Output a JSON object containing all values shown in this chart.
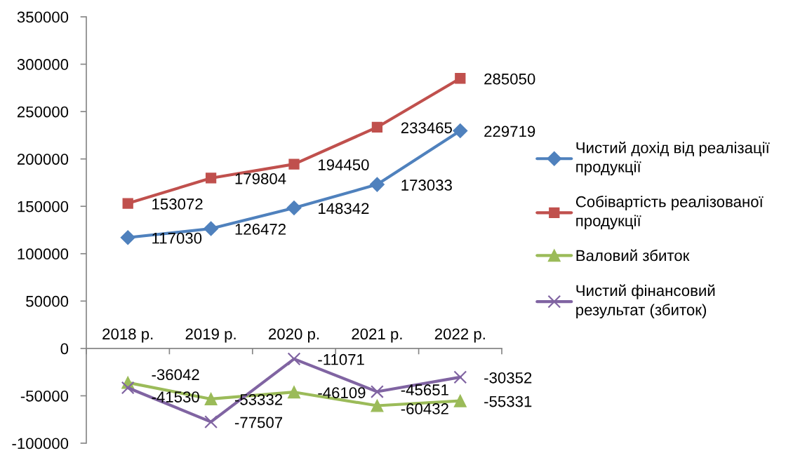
{
  "chart_data": {
    "type": "line",
    "categories": [
      "2018 р.",
      "2019 р.",
      "2020 р.",
      "2021 р.",
      "2022 р."
    ],
    "series": [
      {
        "name": "Чистий дохід від реалізації продукції",
        "color": "#4f81bd",
        "marker": "diamond",
        "values": [
          117030,
          126472,
          148342,
          173033,
          229719
        ]
      },
      {
        "name": "Собівартість реалізованої продукції",
        "color": "#c0504d",
        "marker": "square",
        "values": [
          153072,
          179804,
          194450,
          233465,
          285050
        ]
      },
      {
        "name": "Валовий збиток",
        "color": "#9bbb59",
        "marker": "triangle",
        "values": [
          -36042,
          -53332,
          -46109,
          -60432,
          -55331
        ]
      },
      {
        "name": "Чистий фінансовий результат (збиток)",
        "color": "#8064a2",
        "marker": "cross",
        "values": [
          -41530,
          -77507,
          -11071,
          -45651,
          -30352
        ]
      }
    ],
    "ylim": [
      -100000,
      350000
    ],
    "yticks": [
      -100000,
      -50000,
      0,
      50000,
      100000,
      150000,
      200000,
      250000,
      300000,
      350000
    ],
    "data_labels": true,
    "legend": "right"
  }
}
